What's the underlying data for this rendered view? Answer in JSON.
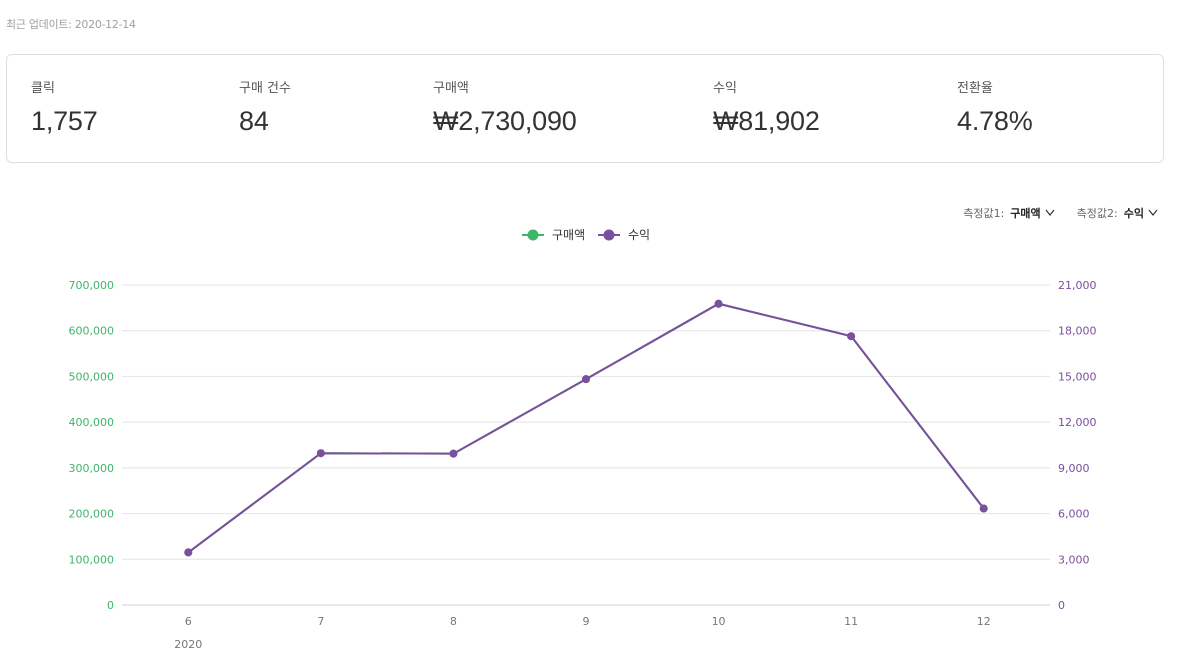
{
  "header": {
    "updated_text": "최근 업데이트: 2020-12-14"
  },
  "summary": [
    {
      "label": "클릭",
      "value": "1,757"
    },
    {
      "label": "구매 건수",
      "value": "84"
    },
    {
      "label": "구매액",
      "value": "₩2,730,090"
    },
    {
      "label": "수익",
      "value": "₩81,902"
    },
    {
      "label": "전환율",
      "value": "4.78%"
    }
  ],
  "selectors": [
    {
      "label": "측정값1:",
      "value": "구매액",
      "icon": "chevron-down-icon"
    },
    {
      "label": "측정값2:",
      "value": "수익",
      "icon": "chevron-down-icon"
    }
  ],
  "colors": {
    "series1": "#3fb56a",
    "series2": "#7b4f9e",
    "grid": "#e4e4e4",
    "tick": "#777777"
  },
  "chart_data": {
    "type": "line",
    "x": [
      "6",
      "7",
      "8",
      "9",
      "10",
      "11",
      "12"
    ],
    "x_sublabel": "2020",
    "series": [
      {
        "name": "구매액",
        "axis": "left",
        "values": [
          115000,
          332000,
          331000,
          494000,
          659000,
          588000,
          211000
        ]
      },
      {
        "name": "수익",
        "axis": "right",
        "values": [
          3450,
          9960,
          9930,
          14820,
          19770,
          17640,
          6330
        ]
      }
    ],
    "y_left": {
      "ticks": [
        "0",
        "100,000",
        "200,000",
        "300,000",
        "400,000",
        "500,000",
        "600,000",
        "700,000"
      ],
      "range": [
        0,
        700000
      ]
    },
    "y_right": {
      "ticks": [
        "0",
        "3,000",
        "6,000",
        "9,000",
        "12,000",
        "15,000",
        "18,000",
        "21,000"
      ],
      "range": [
        0,
        21000
      ]
    },
    "legend_position": "top-center",
    "grid": true
  }
}
